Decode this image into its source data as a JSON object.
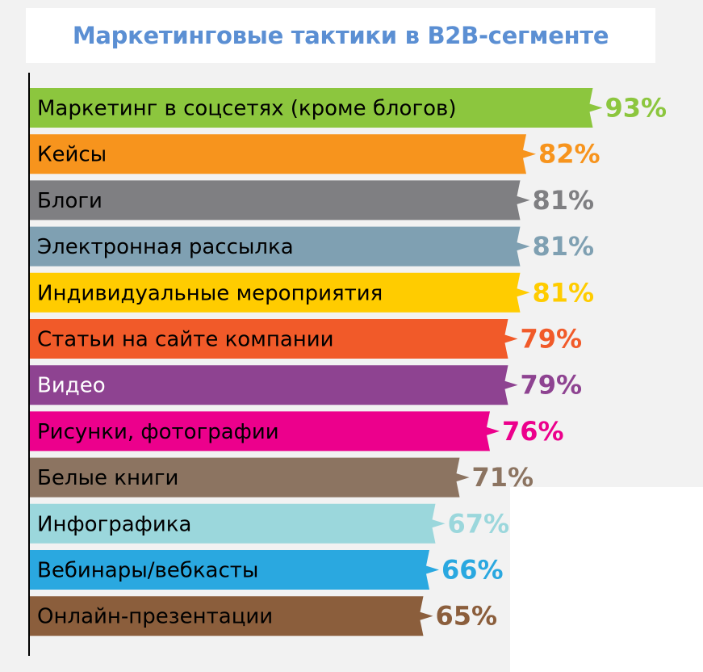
{
  "chart_data": {
    "type": "bar",
    "orientation": "horizontal",
    "title": "Маркетинговые тактики в B2B-сегменте",
    "xlabel": "",
    "ylabel": "",
    "xlim": [
      0,
      100
    ],
    "grid": false,
    "legend": "none",
    "value_suffix": "%",
    "categories": [
      "Маркетинг в соцсетях (кроме блогов)",
      "Кейсы",
      "Блоги",
      "Электронная рассылка",
      "Индивидуальные мероприятия",
      "Статьи на сайте компании",
      "Видео",
      "Рисунки, фотографии",
      "Белые книги",
      "Инфографика",
      "Вебинары/вебкасты",
      "Онлайн-презентации"
    ],
    "values": [
      93,
      82,
      81,
      81,
      81,
      79,
      79,
      76,
      71,
      67,
      66,
      65
    ],
    "value_labels": [
      "93%",
      "82%",
      "81%",
      "81%",
      "81%",
      "79%",
      "79%",
      "76%",
      "71%",
      "67%",
      "66%",
      "65%"
    ],
    "colors": [
      "#8cc63e",
      "#f7941d",
      "#7f7f82",
      "#7fa0b2",
      "#ffcc00",
      "#f15a29",
      "#8e4391",
      "#ec008c",
      "#8c7461",
      "#9bd7dc",
      "#2aa8e0",
      "#8b5e3c"
    ],
    "label_colors": [
      "#000000",
      "#000000",
      "#000000",
      "#000000",
      "#000000",
      "#000000",
      "#ffffff",
      "#000000",
      "#000000",
      "#000000",
      "#000000",
      "#000000"
    ]
  }
}
